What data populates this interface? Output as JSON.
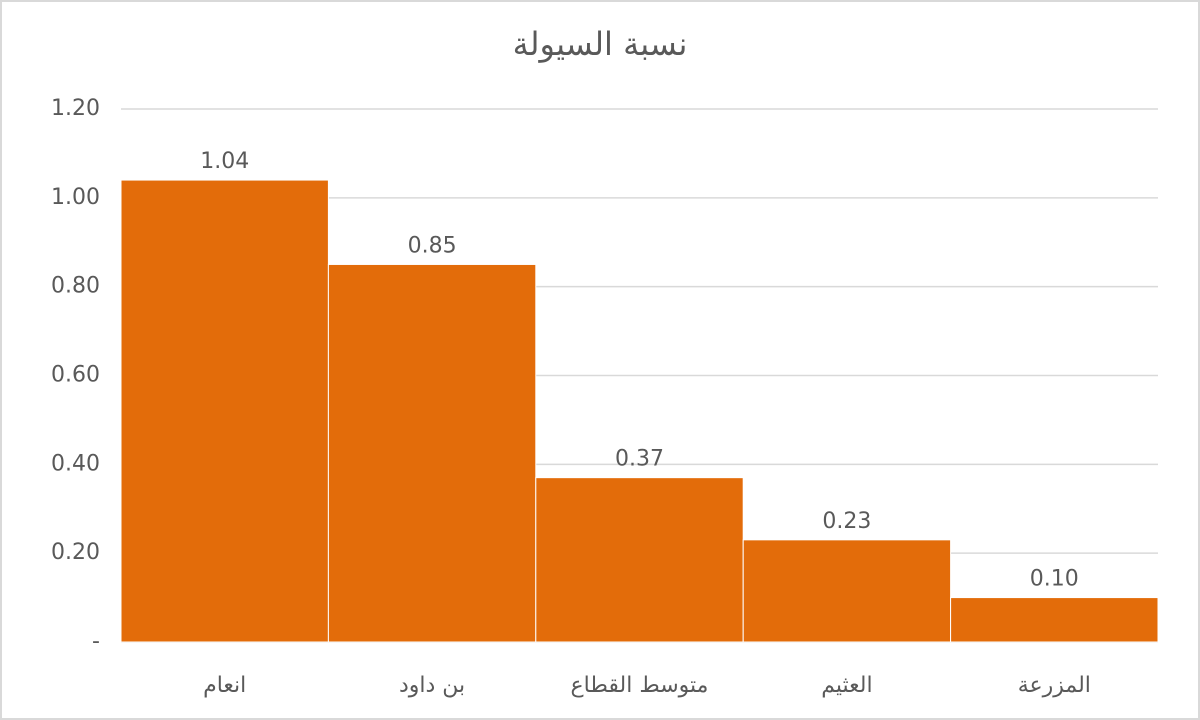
{
  "chart_data": {
    "type": "bar",
    "title": "نسبة السيولة",
    "categories": [
      "انعام",
      "بن داود",
      "متوسط القطاع",
      "العثيم",
      "المزرعة"
    ],
    "values": [
      1.04,
      0.85,
      0.37,
      0.23,
      0.1
    ],
    "value_labels": [
      "1.04",
      "0.85",
      "0.37",
      "0.23",
      "0.10"
    ],
    "color": "#e36c0a",
    "ylim": [
      0,
      1.2
    ],
    "yticks": [
      {
        "value": 0,
        "label": "-"
      },
      {
        "value": 0.2,
        "label": "0.20"
      },
      {
        "value": 0.4,
        "label": "0.40"
      },
      {
        "value": 0.6,
        "label": "0.60"
      },
      {
        "value": 0.8,
        "label": "0.80"
      },
      {
        "value": 1.0,
        "label": "1.00"
      },
      {
        "value": 1.2,
        "label": "1.20"
      }
    ],
    "grid": true
  }
}
